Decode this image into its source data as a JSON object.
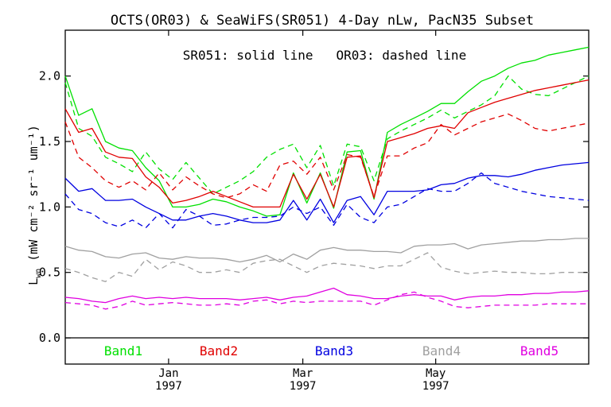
{
  "chart_data": {
    "type": "line",
    "title": "OCTS(OR03) & SeaWiFS(SR051) 4-Day nLw, PacN35 Subset",
    "subtitle": "SR051: solid line   OR03: dashed line",
    "ylabel_main": "L",
    "ylabel_sub": "wn",
    "ylabel_units": "(mW cm⁻² sr⁻¹ um⁻¹)",
    "ylim": [
      -0.2,
      2.35
    ],
    "yticks": [
      {
        "v": 0.0,
        "label": "0.0"
      },
      {
        "v": 0.5,
        "label": "0.5"
      },
      {
        "v": 1.0,
        "label": "1.0"
      },
      {
        "v": 1.5,
        "label": "1.5"
      },
      {
        "v": 2.0,
        "label": "2.0"
      }
    ],
    "xticks": [
      {
        "pos": 7.7,
        "month": "Jan",
        "year": "1997"
      },
      {
        "pos": 17.7,
        "month": "Mar",
        "year": "1997"
      },
      {
        "pos": 27.6,
        "month": "May",
        "year": "1997"
      }
    ],
    "legend": [
      {
        "label": "Band1",
        "color": "#00e000"
      },
      {
        "label": "Band2",
        "color": "#e00000"
      },
      {
        "label": "Band3",
        "color": "#0000e0"
      },
      {
        "label": "Band4",
        "color": "#a0a0a0"
      },
      {
        "label": "Band5",
        "color": "#e000e0"
      }
    ],
    "x": [
      0,
      1,
      2,
      3,
      4,
      5,
      6,
      7,
      8,
      9,
      10,
      11,
      12,
      13,
      14,
      15,
      16,
      17,
      18,
      19,
      20,
      21,
      22,
      23,
      24,
      25,
      26,
      27,
      28,
      29,
      30,
      31,
      32,
      33,
      34,
      35,
      36,
      37,
      38,
      39
    ],
    "series": [
      {
        "band": "Band1",
        "instrument": "SR051",
        "style": "solid",
        "color": "#00e000",
        "values": [
          2.0,
          1.7,
          1.75,
          1.5,
          1.45,
          1.43,
          1.3,
          1.2,
          1.0,
          1.0,
          1.02,
          1.06,
          1.04,
          1.0,
          0.97,
          0.93,
          0.94,
          1.26,
          1.03,
          1.26,
          0.99,
          1.42,
          1.43,
          1.06,
          1.57,
          1.63,
          1.68,
          1.73,
          1.79,
          1.79,
          1.88,
          1.96,
          2.0,
          2.06,
          2.1,
          2.12,
          2.16,
          2.18,
          2.2,
          2.22
        ]
      },
      {
        "band": "Band1",
        "instrument": "OR03",
        "style": "dashed",
        "color": "#00e000",
        "values": [
          1.95,
          1.6,
          1.54,
          1.38,
          1.33,
          1.27,
          1.42,
          1.29,
          1.21,
          1.34,
          1.22,
          1.1,
          1.15,
          1.2,
          1.27,
          1.38,
          1.44,
          1.48,
          1.3,
          1.47,
          1.16,
          1.48,
          1.46,
          1.2,
          1.52,
          1.58,
          1.63,
          1.68,
          1.74,
          1.68,
          1.73,
          1.78,
          1.85,
          2.0,
          1.9,
          1.86,
          1.85,
          1.9,
          1.95,
          2.0
        ]
      },
      {
        "band": "Band2",
        "instrument": "SR051",
        "style": "solid",
        "color": "#e00000",
        "values": [
          1.75,
          1.57,
          1.6,
          1.42,
          1.38,
          1.37,
          1.23,
          1.15,
          1.03,
          1.05,
          1.08,
          1.12,
          1.08,
          1.04,
          1.0,
          1.0,
          1.0,
          1.25,
          1.06,
          1.25,
          1.0,
          1.38,
          1.39,
          1.07,
          1.5,
          1.53,
          1.56,
          1.6,
          1.62,
          1.6,
          1.72,
          1.76,
          1.8,
          1.83,
          1.86,
          1.89,
          1.91,
          1.93,
          1.95,
          1.97
        ]
      },
      {
        "band": "Band2",
        "instrument": "OR03",
        "style": "dashed",
        "color": "#e00000",
        "values": [
          1.65,
          1.38,
          1.3,
          1.2,
          1.15,
          1.2,
          1.13,
          1.26,
          1.13,
          1.23,
          1.16,
          1.1,
          1.07,
          1.1,
          1.17,
          1.12,
          1.32,
          1.35,
          1.25,
          1.38,
          1.13,
          1.4,
          1.38,
          1.08,
          1.39,
          1.39,
          1.45,
          1.49,
          1.63,
          1.55,
          1.6,
          1.65,
          1.68,
          1.71,
          1.66,
          1.6,
          1.58,
          1.6,
          1.62,
          1.64
        ]
      },
      {
        "band": "Band3",
        "instrument": "SR051",
        "style": "solid",
        "color": "#0000e0",
        "values": [
          1.22,
          1.12,
          1.14,
          1.05,
          1.05,
          1.06,
          1.0,
          0.95,
          0.9,
          0.9,
          0.93,
          0.95,
          0.93,
          0.9,
          0.88,
          0.88,
          0.9,
          1.05,
          0.9,
          1.06,
          0.88,
          1.05,
          1.08,
          0.94,
          1.12,
          1.12,
          1.12,
          1.13,
          1.17,
          1.18,
          1.22,
          1.24,
          1.24,
          1.23,
          1.25,
          1.28,
          1.3,
          1.32,
          1.33,
          1.34
        ]
      },
      {
        "band": "Band3",
        "instrument": "OR03",
        "style": "dashed",
        "color": "#0000e0",
        "values": [
          1.1,
          0.98,
          0.95,
          0.88,
          0.85,
          0.9,
          0.84,
          0.95,
          0.84,
          0.98,
          0.93,
          0.86,
          0.87,
          0.9,
          0.92,
          0.92,
          0.93,
          1.0,
          0.95,
          1.0,
          0.86,
          1.02,
          0.92,
          0.88,
          1.0,
          1.02,
          1.08,
          1.14,
          1.12,
          1.12,
          1.18,
          1.26,
          1.18,
          1.15,
          1.12,
          1.1,
          1.08,
          1.07,
          1.06,
          1.05
        ]
      },
      {
        "band": "Band4",
        "instrument": "SR051",
        "style": "solid",
        "color": "#a0a0a0",
        "values": [
          0.7,
          0.67,
          0.66,
          0.62,
          0.61,
          0.64,
          0.65,
          0.61,
          0.6,
          0.62,
          0.61,
          0.61,
          0.6,
          0.58,
          0.6,
          0.63,
          0.58,
          0.64,
          0.6,
          0.67,
          0.69,
          0.67,
          0.67,
          0.66,
          0.66,
          0.65,
          0.7,
          0.71,
          0.71,
          0.72,
          0.68,
          0.71,
          0.72,
          0.73,
          0.74,
          0.74,
          0.75,
          0.75,
          0.76,
          0.76
        ]
      },
      {
        "band": "Band4",
        "instrument": "OR03",
        "style": "dashed",
        "color": "#a0a0a0",
        "values": [
          0.53,
          0.5,
          0.46,
          0.43,
          0.5,
          0.47,
          0.6,
          0.52,
          0.58,
          0.55,
          0.5,
          0.5,
          0.52,
          0.5,
          0.57,
          0.59,
          0.6,
          0.55,
          0.5,
          0.55,
          0.57,
          0.56,
          0.55,
          0.53,
          0.55,
          0.55,
          0.6,
          0.65,
          0.54,
          0.51,
          0.49,
          0.5,
          0.51,
          0.5,
          0.5,
          0.49,
          0.49,
          0.5,
          0.5,
          0.5
        ]
      },
      {
        "band": "Band5",
        "instrument": "SR051",
        "style": "solid",
        "color": "#e000e0",
        "values": [
          0.31,
          0.3,
          0.28,
          0.27,
          0.3,
          0.32,
          0.3,
          0.31,
          0.3,
          0.31,
          0.3,
          0.3,
          0.3,
          0.29,
          0.3,
          0.31,
          0.29,
          0.31,
          0.32,
          0.35,
          0.38,
          0.33,
          0.32,
          0.3,
          0.3,
          0.32,
          0.33,
          0.32,
          0.32,
          0.29,
          0.31,
          0.32,
          0.32,
          0.33,
          0.33,
          0.34,
          0.34,
          0.35,
          0.35,
          0.36
        ]
      },
      {
        "band": "Band5",
        "instrument": "OR03",
        "style": "dashed",
        "color": "#e000e0",
        "values": [
          0.27,
          0.26,
          0.25,
          0.22,
          0.24,
          0.28,
          0.25,
          0.26,
          0.27,
          0.26,
          0.25,
          0.25,
          0.26,
          0.25,
          0.28,
          0.29,
          0.26,
          0.28,
          0.27,
          0.28,
          0.28,
          0.28,
          0.28,
          0.25,
          0.29,
          0.33,
          0.35,
          0.31,
          0.28,
          0.24,
          0.23,
          0.24,
          0.25,
          0.25,
          0.25,
          0.25,
          0.26,
          0.26,
          0.26,
          0.26
        ]
      }
    ]
  }
}
